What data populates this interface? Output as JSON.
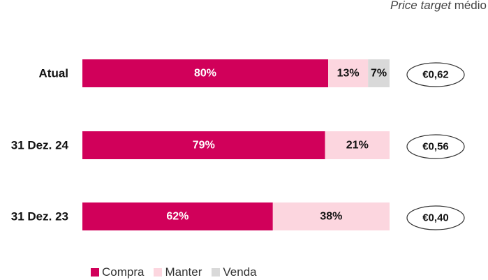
{
  "header": {
    "italic_text": "Price target",
    "text": "médio"
  },
  "colors": {
    "compra": "#d1005a",
    "manter": "#fcd6df",
    "venda": "#d9d9d9"
  },
  "chart_data": {
    "type": "bar",
    "orientation": "horizontal",
    "stacked": true,
    "percent_stacked": true,
    "categories": [
      "Atual",
      "31 Dez. 24",
      "31 Dez. 23"
    ],
    "series": [
      {
        "name": "Compra",
        "values": [
          80,
          79,
          62
        ],
        "labels": [
          "80%",
          "79%",
          "62%"
        ]
      },
      {
        "name": "Manter",
        "values": [
          13,
          21,
          38
        ],
        "labels": [
          "13%",
          "21%",
          "38%"
        ]
      },
      {
        "name": "Venda",
        "values": [
          7,
          0,
          0
        ],
        "labels": [
          "7%",
          "",
          ""
        ]
      }
    ],
    "price_targets": [
      "€0,62",
      "€0,56",
      "€0,40"
    ],
    "legend": "bottom",
    "grid": false
  }
}
